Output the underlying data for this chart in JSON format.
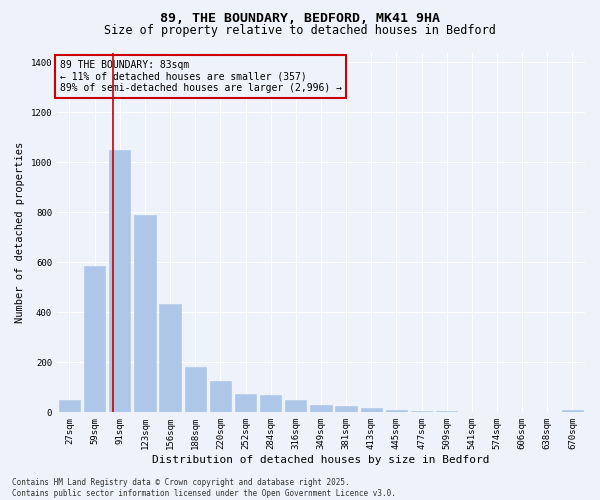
{
  "title_line1": "89, THE BOUNDARY, BEDFORD, MK41 9HA",
  "title_line2": "Size of property relative to detached houses in Bedford",
  "xlabel": "Distribution of detached houses by size in Bedford",
  "ylabel": "Number of detached properties",
  "bar_labels": [
    "27sqm",
    "59sqm",
    "91sqm",
    "123sqm",
    "156sqm",
    "188sqm",
    "220sqm",
    "252sqm",
    "284sqm",
    "316sqm",
    "349sqm",
    "381sqm",
    "413sqm",
    "445sqm",
    "477sqm",
    "509sqm",
    "541sqm",
    "574sqm",
    "606sqm",
    "638sqm",
    "670sqm"
  ],
  "bar_values": [
    50,
    585,
    1050,
    790,
    435,
    180,
    125,
    75,
    70,
    50,
    30,
    25,
    18,
    10,
    5,
    5,
    3,
    2,
    2,
    2,
    10
  ],
  "bar_color": "#aec6e8",
  "bar_edge_color": "#aec6e8",
  "bg_color": "#eef3fb",
  "grid_color": "#ffffff",
  "annotation_box_color": "#cc0000",
  "vline_color": "#cc0000",
  "annotation_text": "89 THE BOUNDARY: 83sqm\n← 11% of detached houses are smaller (357)\n89% of semi-detached houses are larger (2,996) →",
  "annotation_fontsize": 7.0,
  "ylim": [
    0,
    1440
  ],
  "yticks": [
    0,
    200,
    400,
    600,
    800,
    1000,
    1200,
    1400
  ],
  "footnote": "Contains HM Land Registry data © Crown copyright and database right 2025.\nContains public sector information licensed under the Open Government Licence v3.0.",
  "title_fontsize": 9.5,
  "subtitle_fontsize": 8.5,
  "tick_fontsize": 6.5,
  "ylabel_fontsize": 7.5,
  "xlabel_fontsize": 8.0,
  "footnote_fontsize": 5.5
}
